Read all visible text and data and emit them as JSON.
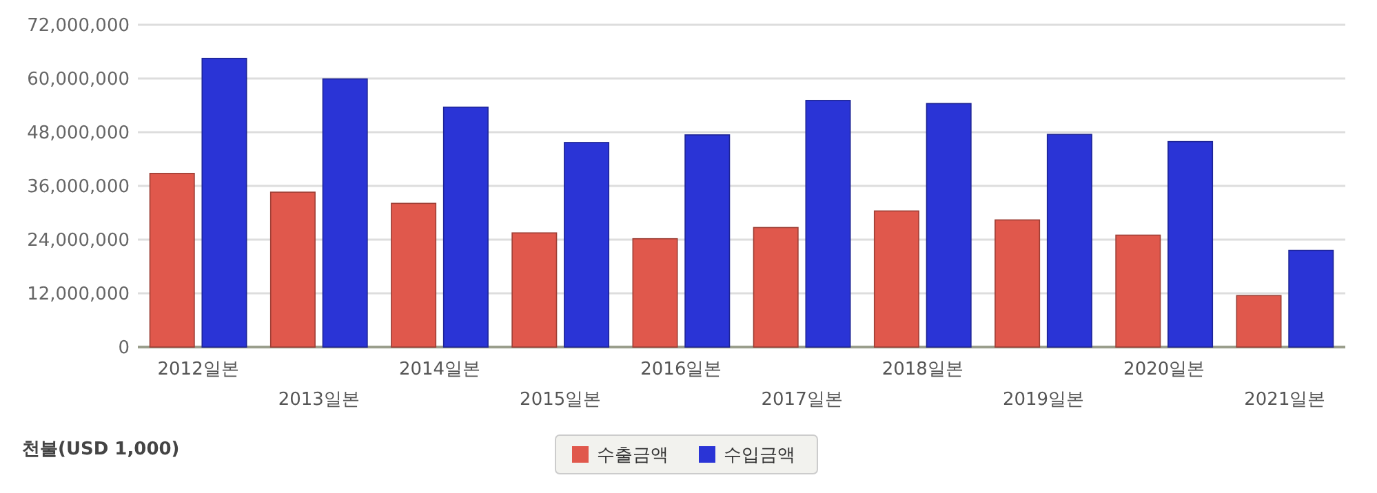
{
  "chart_data": {
    "type": "bar",
    "ylabel": "천불(USD 1,000)",
    "categories": [
      "2012일본",
      "2013일본",
      "2014일본",
      "2015일본",
      "2016일본",
      "2017일본",
      "2018일본",
      "2019일본",
      "2020일본",
      "2021일본"
    ],
    "series": [
      {
        "name": "수출금액",
        "color": "#e0584c",
        "values": [
          38800000,
          34600000,
          32100000,
          25500000,
          24200000,
          26700000,
          30400000,
          28400000,
          25000000,
          11500000
        ]
      },
      {
        "name": "수입금액",
        "color": "#2a34d6",
        "values": [
          64500000,
          59900000,
          53600000,
          45700000,
          47400000,
          55100000,
          54400000,
          47500000,
          45900000,
          21600000
        ]
      }
    ],
    "ylim": [
      0,
      72000000
    ],
    "yticks": [
      {
        "value": 0,
        "label": "0"
      },
      {
        "value": 12000000,
        "label": "12,000,000"
      },
      {
        "value": 24000000,
        "label": "24,000,000"
      },
      {
        "value": 36000000,
        "label": "36,000,000"
      },
      {
        "value": 48000000,
        "label": "48,000,000"
      },
      {
        "value": 60000000,
        "label": "60,000,000"
      },
      {
        "value": 72000000,
        "label": "72,000,000"
      }
    ],
    "grid": "y",
    "legend": "bottom"
  }
}
